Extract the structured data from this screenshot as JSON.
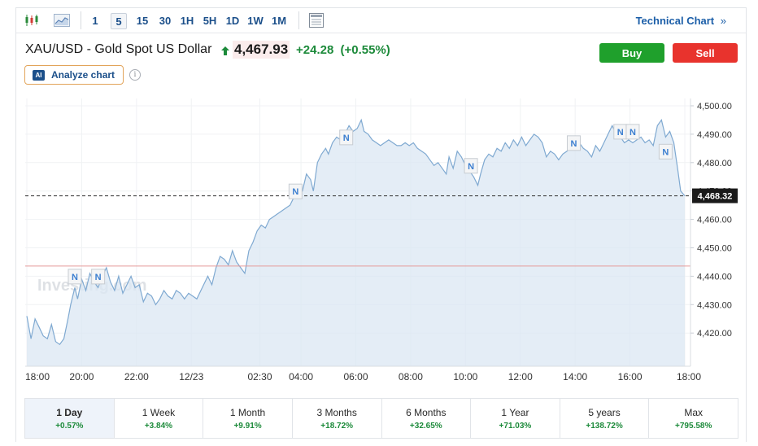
{
  "toolbar": {
    "timeframes": [
      "1",
      "5",
      "15",
      "30",
      "1H",
      "5H",
      "1D",
      "1W",
      "1M"
    ],
    "active_timeframe": "5",
    "technical_chart_label": "Technical Chart",
    "technical_chart_arrow": "»"
  },
  "instrument": {
    "title": "XAU/USD - Gold Spot US Dollar",
    "price": "4,467.93",
    "change": "+24.28",
    "change_pct": "(+0.55%)"
  },
  "actions": {
    "buy_label": "Buy",
    "sell_label": "Sell"
  },
  "analyze": {
    "badge": "AI",
    "label": "Analyze chart",
    "info_glyph": "i"
  },
  "watermark": "Investing.com",
  "chart_data": {
    "type": "area",
    "ylim": [
      4411,
      4502
    ],
    "y_ticks": [
      "4,500.00",
      "4,490.00",
      "4,480.00",
      "4,470.00",
      "4,460.00",
      "4,450.00",
      "4,440.00",
      "4,430.00",
      "4,420.00"
    ],
    "y_tick_values": [
      4500,
      4490,
      4480,
      4470,
      4460,
      4450,
      4440,
      4430,
      4420
    ],
    "x_ticks": [
      "18:00",
      "20:00",
      "22:00",
      "12/23",
      "02:30",
      "04:00",
      "06:00",
      "08:00",
      "10:00",
      "12:00",
      "14:00",
      "16:00",
      "18:00"
    ],
    "x_tick_hours": [
      0,
      2,
      4,
      6,
      8.5,
      10,
      12,
      14,
      16,
      18,
      20,
      22,
      24
    ],
    "current_price_label": "4,468.32",
    "current_price": 4468.32,
    "reference_line": 4443.6,
    "news_marker_label": "N",
    "news_markers": [
      {
        "hours": 1.75,
        "value": 4437
      },
      {
        "hours": 2.6,
        "value": 4437
      },
      {
        "hours": 9.8,
        "value": 4467
      },
      {
        "hours": 11.65,
        "value": 4486
      },
      {
        "hours": 16.2,
        "value": 4476
      },
      {
        "hours": 19.95,
        "value": 4484
      },
      {
        "hours": 21.65,
        "value": 4488
      },
      {
        "hours": 22.1,
        "value": 4488
      },
      {
        "hours": 23.3,
        "value": 4481
      }
    ],
    "series": [
      {
        "values": [
          [
            0.0,
            4426
          ],
          [
            0.15,
            4418
          ],
          [
            0.3,
            4425
          ],
          [
            0.45,
            4422
          ],
          [
            0.6,
            4419
          ],
          [
            0.75,
            4418
          ],
          [
            0.9,
            4423
          ],
          [
            1.05,
            4417
          ],
          [
            1.2,
            4416
          ],
          [
            1.35,
            4418
          ],
          [
            1.5,
            4425
          ],
          [
            1.6,
            4430
          ],
          [
            1.75,
            4436
          ],
          [
            1.85,
            4432
          ],
          [
            2.0,
            4439
          ],
          [
            2.15,
            4435
          ],
          [
            2.3,
            4441
          ],
          [
            2.45,
            4438
          ],
          [
            2.6,
            4436
          ],
          [
            2.75,
            4440
          ],
          [
            2.9,
            4443
          ],
          [
            3.05,
            4438
          ],
          [
            3.2,
            4435
          ],
          [
            3.35,
            4440
          ],
          [
            3.5,
            4434
          ],
          [
            3.65,
            4437
          ],
          [
            3.8,
            4440
          ],
          [
            3.95,
            4436
          ],
          [
            4.1,
            4437
          ],
          [
            4.25,
            4431
          ],
          [
            4.4,
            4434
          ],
          [
            4.55,
            4433
          ],
          [
            4.7,
            4430
          ],
          [
            4.85,
            4432
          ],
          [
            5.0,
            4435
          ],
          [
            5.15,
            4433
          ],
          [
            5.3,
            4432
          ],
          [
            5.45,
            4435
          ],
          [
            5.6,
            4434
          ],
          [
            5.75,
            4432
          ],
          [
            5.9,
            4434
          ],
          [
            6.05,
            4433
          ],
          [
            6.2,
            4432
          ],
          [
            6.35,
            4435
          ],
          [
            6.5,
            4438
          ],
          [
            6.6,
            4440
          ],
          [
            6.75,
            4437
          ],
          [
            6.9,
            4443
          ],
          [
            7.05,
            4447
          ],
          [
            7.2,
            4446
          ],
          [
            7.35,
            4444
          ],
          [
            7.5,
            4449
          ],
          [
            7.65,
            4445
          ],
          [
            7.8,
            4443
          ],
          [
            7.95,
            4441
          ],
          [
            8.1,
            4449
          ],
          [
            8.25,
            4452
          ],
          [
            8.4,
            4456
          ],
          [
            8.55,
            4458
          ],
          [
            8.7,
            4457
          ],
          [
            8.85,
            4460
          ],
          [
            9.0,
            4461
          ],
          [
            9.15,
            4462
          ],
          [
            9.3,
            4463
          ],
          [
            9.45,
            4464
          ],
          [
            9.6,
            4465
          ],
          [
            9.75,
            4468
          ],
          [
            9.9,
            4468
          ],
          [
            10.05,
            4470
          ],
          [
            10.2,
            4476
          ],
          [
            10.35,
            4474
          ],
          [
            10.45,
            4470
          ],
          [
            10.6,
            4480
          ],
          [
            10.75,
            4483
          ],
          [
            10.9,
            4485
          ],
          [
            11.0,
            4483
          ],
          [
            11.15,
            4487
          ],
          [
            11.3,
            4489
          ],
          [
            11.45,
            4488
          ],
          [
            11.6,
            4490
          ],
          [
            11.75,
            4493
          ],
          [
            11.9,
            4491
          ],
          [
            12.05,
            4492
          ],
          [
            12.2,
            4495
          ],
          [
            12.3,
            4491
          ],
          [
            12.45,
            4490
          ],
          [
            12.6,
            4488
          ],
          [
            12.75,
            4487
          ],
          [
            12.9,
            4486
          ],
          [
            13.05,
            4487
          ],
          [
            13.2,
            4488
          ],
          [
            13.35,
            4487
          ],
          [
            13.5,
            4486
          ],
          [
            13.65,
            4486
          ],
          [
            13.8,
            4487
          ],
          [
            13.95,
            4486
          ],
          [
            14.1,
            4487
          ],
          [
            14.25,
            4485
          ],
          [
            14.4,
            4484
          ],
          [
            14.55,
            4483
          ],
          [
            14.7,
            4481
          ],
          [
            14.85,
            4479
          ],
          [
            15.0,
            4480
          ],
          [
            15.15,
            4478
          ],
          [
            15.3,
            4476
          ],
          [
            15.4,
            4482
          ],
          [
            15.55,
            4478
          ],
          [
            15.7,
            4484
          ],
          [
            15.85,
            4482
          ],
          [
            16.0,
            4479
          ],
          [
            16.15,
            4477
          ],
          [
            16.3,
            4475
          ],
          [
            16.45,
            4472
          ],
          [
            16.55,
            4476
          ],
          [
            16.7,
            4481
          ],
          [
            16.85,
            4483
          ],
          [
            17.0,
            4482
          ],
          [
            17.15,
            4485
          ],
          [
            17.3,
            4484
          ],
          [
            17.45,
            4487
          ],
          [
            17.6,
            4485
          ],
          [
            17.75,
            4488
          ],
          [
            17.9,
            4486
          ],
          [
            18.05,
            4489
          ],
          [
            18.2,
            4486
          ],
          [
            18.35,
            4488
          ],
          [
            18.5,
            4490
          ],
          [
            18.65,
            4489
          ],
          [
            18.8,
            4487
          ],
          [
            18.95,
            4482
          ],
          [
            19.1,
            4484
          ],
          [
            19.25,
            4483
          ],
          [
            19.4,
            4481
          ],
          [
            19.55,
            4483
          ],
          [
            19.7,
            4484
          ],
          [
            19.85,
            4486
          ],
          [
            20.0,
            4485
          ],
          [
            20.15,
            4487
          ],
          [
            20.3,
            4485
          ],
          [
            20.45,
            4484
          ],
          [
            20.6,
            4482
          ],
          [
            20.75,
            4486
          ],
          [
            20.9,
            4484
          ],
          [
            21.05,
            4487
          ],
          [
            21.2,
            4490
          ],
          [
            21.35,
            4493
          ],
          [
            21.5,
            4490
          ],
          [
            21.65,
            4489
          ],
          [
            21.8,
            4487
          ],
          [
            21.95,
            4488
          ],
          [
            22.1,
            4487
          ],
          [
            22.25,
            4488
          ],
          [
            22.4,
            4489
          ],
          [
            22.55,
            4487
          ],
          [
            22.7,
            4488
          ],
          [
            22.85,
            4486
          ],
          [
            23.0,
            4493
          ],
          [
            23.15,
            4495
          ],
          [
            23.3,
            4489
          ],
          [
            23.45,
            4491
          ],
          [
            23.6,
            4487
          ],
          [
            23.75,
            4477
          ],
          [
            23.85,
            4470
          ],
          [
            24.0,
            4468.3
          ]
        ]
      }
    ]
  },
  "periods": [
    {
      "label": "1 Day",
      "change": "+0.57%"
    },
    {
      "label": "1 Week",
      "change": "+3.84%"
    },
    {
      "label": "1 Month",
      "change": "+9.91%"
    },
    {
      "label": "3 Months",
      "change": "+18.72%"
    },
    {
      "label": "6 Months",
      "change": "+32.65%"
    },
    {
      "label": "1 Year",
      "change": "+71.03%"
    },
    {
      "label": "5 years",
      "change": "+138.72%"
    },
    {
      "label": "Max",
      "change": "+795.58%"
    }
  ],
  "active_period": "1 Day"
}
